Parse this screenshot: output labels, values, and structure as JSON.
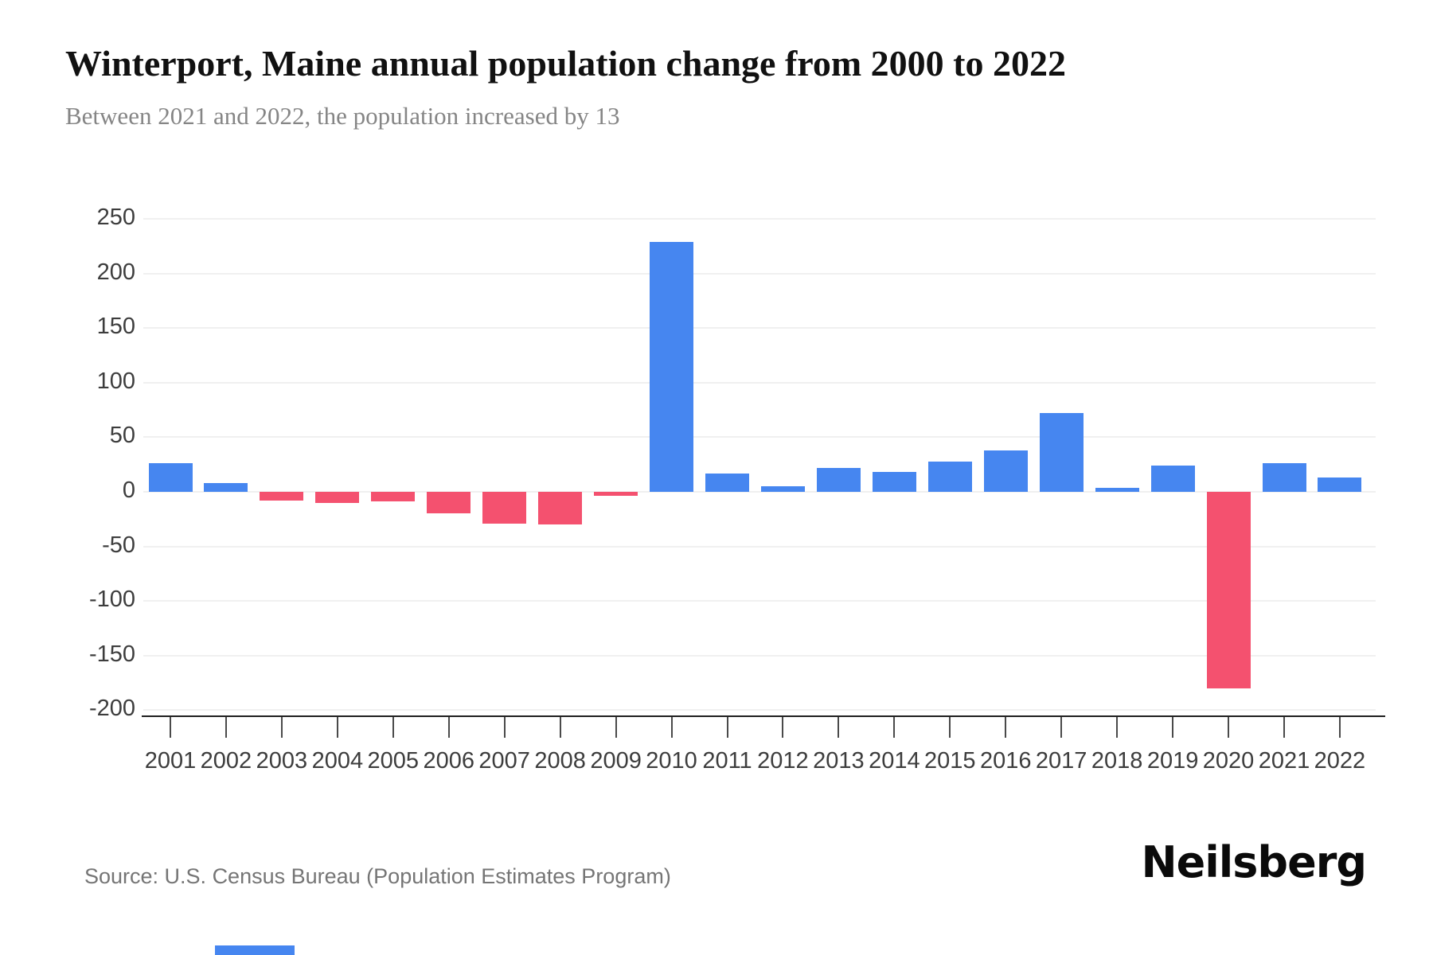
{
  "page": {
    "title": "Winterport, Maine annual population change from 2000 to 2022",
    "subtitle": "Between 2021 and 2022, the population increased by 13",
    "source": "Source: U.S. Census Bureau (Population Estimates Program)",
    "brand": "Neilsberg"
  },
  "colors": {
    "positive_bar": "#4686f0",
    "negative_bar": "#f4516f",
    "grid": "#f0f0f0",
    "axis": "#1f1f1f",
    "tick_label": "#3d3d3d",
    "title": "#111111",
    "subtitle": "#858585",
    "source": "#757575",
    "brand": "#0a0a0a"
  },
  "chart_data": {
    "type": "bar",
    "title": "Winterport, Maine annual population change from 2000 to 2022",
    "subtitle": "Between 2021 and 2022, the population increased by 13",
    "xlabel": "",
    "ylabel": "",
    "categories": [
      "2001",
      "2002",
      "2003",
      "2004",
      "2005",
      "2006",
      "2007",
      "2008",
      "2009",
      "2010",
      "2011",
      "2012",
      "2013",
      "2014",
      "2015",
      "2016",
      "2017",
      "2018",
      "2019",
      "2020",
      "2021",
      "2022"
    ],
    "values": [
      26,
      8,
      -8,
      -10,
      -9,
      -20,
      -29,
      -30,
      -4,
      229,
      17,
      5,
      22,
      18,
      28,
      38,
      72,
      4,
      24,
      -180,
      26,
      13
    ],
    "ylim": [
      -200,
      250
    ],
    "yticks": [
      250,
      200,
      150,
      100,
      50,
      0,
      -50,
      -100,
      -150,
      -200
    ],
    "grid": "horizontal",
    "legend_position": "none",
    "positive_color": "#4686f0",
    "negative_color": "#f4516f"
  }
}
